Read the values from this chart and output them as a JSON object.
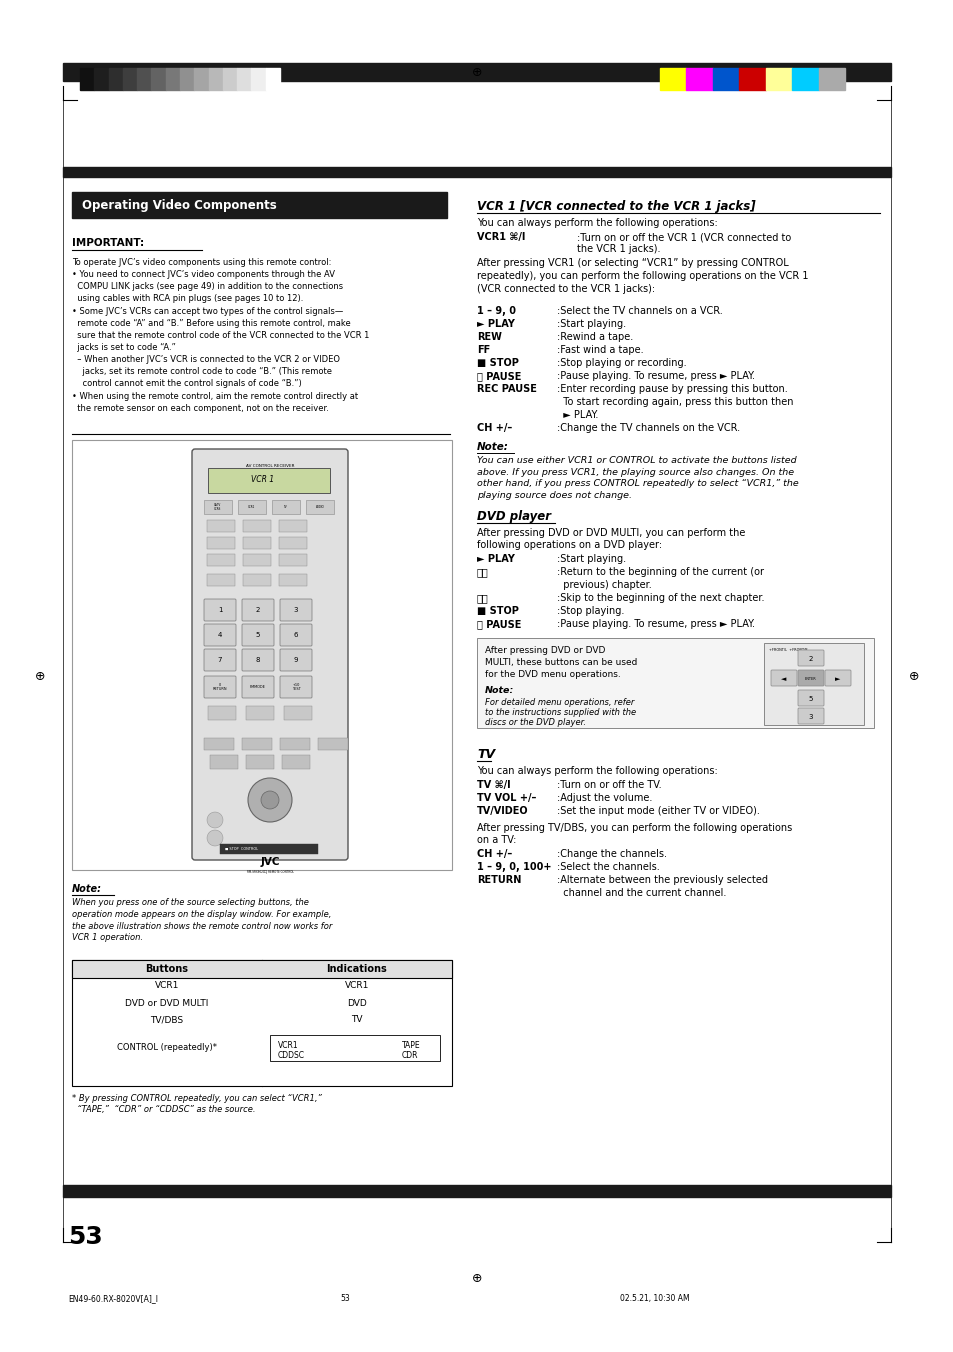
{
  "page_width": 9.54,
  "page_height": 13.52,
  "bg": "#ffffff",
  "bar_color": "#1a1a1a",
  "section_hdr_text": "Operating Video Components",
  "grayscale_colors": [
    "#111111",
    "#1e1e1e",
    "#2e2e2e",
    "#3e3e3e",
    "#505050",
    "#636363",
    "#787878",
    "#909090",
    "#a5a5a5",
    "#b8b8b8",
    "#cccccc",
    "#dedede",
    "#efefef",
    "#ffffff"
  ],
  "color_bars": [
    "#ffff00",
    "#ff00ff",
    "#0055cc",
    "#cc0000",
    "#ffff99",
    "#00ccff",
    "#aaaaaa"
  ],
  "footer_left": "EN49-60.RX-8020V[A]_I",
  "footer_center": "53",
  "footer_right": "02.5.21, 10:30 AM",
  "page_number": "53"
}
